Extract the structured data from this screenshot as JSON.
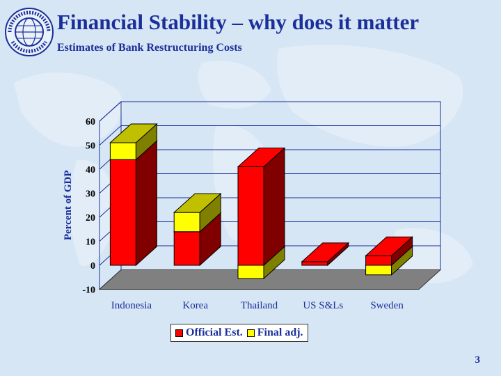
{
  "slide": {
    "title": "Financial Stability – why does it matter",
    "subtitle": "Estimates of Bank Restructuring Costs",
    "page_number": "3",
    "logo_text": "INTERNATIONAL MONETARY FUND"
  },
  "colors": {
    "official": "#ff0000",
    "official_side": "#800000",
    "final": "#ffff00",
    "final_side": "#808000",
    "final_top": "#c0c000",
    "floor": "#808080",
    "text": "#1a2f9a",
    "grid": "#1a2f9a"
  },
  "chart_data": {
    "type": "bar",
    "stacked": true,
    "three_d": true,
    "categories": [
      "Indonesia",
      "Korea",
      "Thailand",
      "US S&Ls",
      "Sweden"
    ],
    "series": [
      {
        "name": "Official Est.",
        "values": [
          44,
          14,
          41,
          1.5,
          4
        ]
      },
      {
        "name": "Final adj.",
        "values": [
          7,
          8,
          -5.5,
          0,
          -4
        ]
      }
    ],
    "ylabel": "Percent of GDP",
    "xlabel": "",
    "ylim": [
      -10,
      60
    ],
    "yticks": [
      -10,
      0,
      10,
      20,
      30,
      40,
      50,
      60
    ],
    "grid": true,
    "legend": "bottom"
  }
}
